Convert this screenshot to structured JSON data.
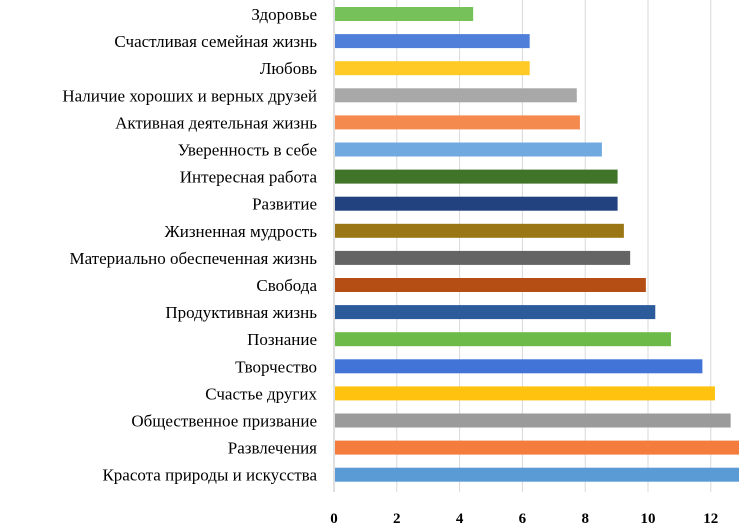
{
  "chart_data": {
    "type": "bar",
    "orientation": "horizontal",
    "categories": [
      "Здоровье",
      "Счастливая семейная жизнь",
      "Любовь",
      "Наличие хороших и верных друзей",
      "Активная деятельная жизнь",
      "Уверенность в себе",
      "Интересная работа",
      "Развитие",
      "Жизненная мудрость",
      "Материально обеспеченная жизнь",
      "Свобода",
      "Продуктивная жизнь",
      "Познание",
      "Творчество",
      "Счастье других",
      "Общественное призвание",
      "Развлечения",
      "Красота природы и искусства"
    ],
    "values": [
      4.4,
      6.2,
      6.2,
      7.7,
      7.8,
      8.5,
      9.0,
      9.0,
      9.2,
      9.4,
      9.9,
      10.2,
      10.7,
      11.7,
      12.1,
      12.6,
      12.9,
      13.0
    ],
    "colors": [
      "#77c15a",
      "#4f7fd8",
      "#ffc926",
      "#a8a8a8",
      "#f58a4e",
      "#6fa9e0",
      "#3f7429",
      "#22427f",
      "#9a7714",
      "#646464",
      "#b44e15",
      "#2c5b9c",
      "#6dba49",
      "#4273d6",
      "#ffc20e",
      "#9b9b9b",
      "#f47c3c",
      "#5b9bd5"
    ],
    "xticks": [
      "0",
      "2",
      "4",
      "6",
      "8",
      "10",
      "12"
    ],
    "xlim": [
      0,
      13
    ],
    "title": "",
    "xlabel": "",
    "ylabel": "",
    "grid": "vertical"
  }
}
